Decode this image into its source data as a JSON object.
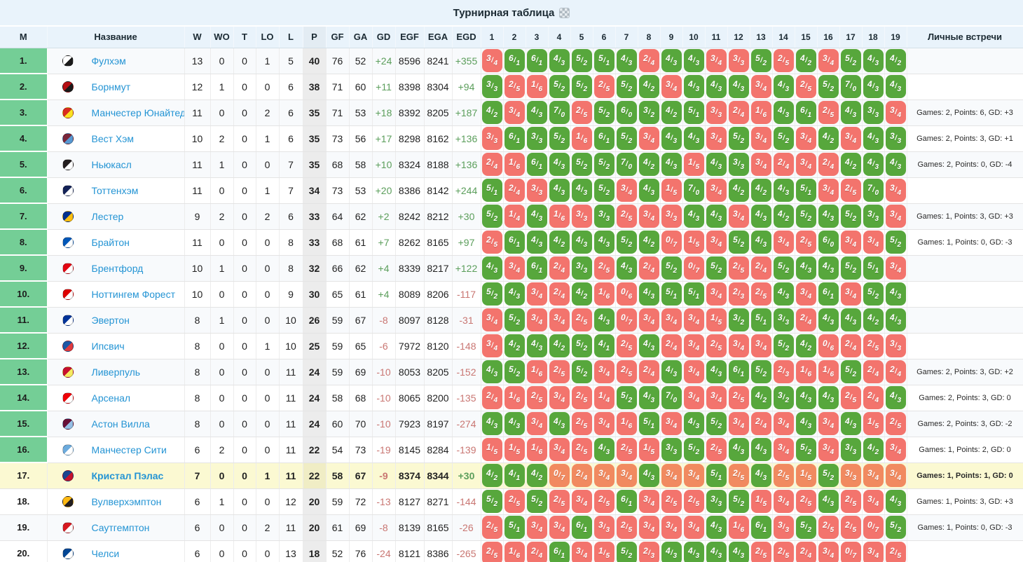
{
  "title": {
    "text": "Турнирная таблица",
    "icon": "grid-icon"
  },
  "colors": {
    "header_bg": "#e9f3fb",
    "win_chip": "#57a73c",
    "loss_chip": "#f3746d",
    "highlight_loss_chip": "#f18a60",
    "rank_green": "#74ce96",
    "highlight_row": "#fbf9d2",
    "team_link": "#2494d4",
    "positive_text": "#5b9e5b",
    "negative_text": "#c97672",
    "points_col_bg": "#ececec"
  },
  "table": {
    "stat_columns": [
      "М",
      "Название",
      "W",
      "WO",
      "T",
      "LO",
      "L",
      "P",
      "GF",
      "GA",
      "GD",
      "EGF",
      "EGA",
      "EGD"
    ],
    "matrix_columns": [
      "1",
      "2",
      "3",
      "4",
      "5",
      "6",
      "7",
      "8",
      "9",
      "10",
      "11",
      "12",
      "13",
      "14",
      "15",
      "16",
      "17",
      "18",
      "19"
    ],
    "h2h_column": "Личные встречи"
  },
  "teams": [
    {
      "pos": "1.",
      "name": "Фулхэм",
      "logo": [
        "#ffffff",
        "#1a1a1a"
      ],
      "stats": [
        13,
        0,
        0,
        1,
        5,
        40,
        76,
        52,
        "+24",
        "8596",
        "8241",
        "+355"
      ],
      "h2h": "",
      "highlight": false,
      "results": [
        "3/4l",
        "6/1w",
        "6/1w",
        "4/3w",
        "5/2w",
        "5/1w",
        "4/3w",
        "2/4l",
        "4/3w",
        "4/3w",
        "3/4l",
        "3/3l",
        "5/2w",
        "2/5l",
        "4/2w",
        "3/4l",
        "5/2w",
        "4/3w",
        "4/2w"
      ]
    },
    {
      "pos": "2.",
      "name": "Борнмут",
      "logo": [
        "#b50e12",
        "#1a1a1a"
      ],
      "stats": [
        12,
        1,
        0,
        0,
        6,
        38,
        71,
        60,
        "+11",
        "8398",
        "8304",
        "+94"
      ],
      "h2h": "",
      "highlight": false,
      "results": [
        "3/3w",
        "2/5l",
        "1/6l",
        "5/2w",
        "5/2w",
        "2/5l",
        "5/2w",
        "4/2w",
        "3/4l",
        "4/3w",
        "4/3w",
        "4/3w",
        "3/4l",
        "4/3w",
        "2/5l",
        "5/2w",
        "7/0w",
        "4/3w",
        "4/3w"
      ]
    },
    {
      "pos": "3.",
      "name": "Манчестер Юнайтед",
      "logo": [
        "#da2b1f",
        "#fbe122"
      ],
      "stats": [
        11,
        0,
        0,
        2,
        6,
        35,
        71,
        53,
        "+18",
        "8392",
        "8205",
        "+187"
      ],
      "h2h": "Games: 2, Points: 6, GD: +3",
      "highlight": false,
      "results": [
        "4/2w",
        "3/4l",
        "4/3w",
        "7/0w",
        "2/5l",
        "5/2w",
        "6/0w",
        "3/2w",
        "4/2w",
        "5/1w",
        "3/3l",
        "2/4l",
        "1/6l",
        "4/3w",
        "6/1w",
        "2/5l",
        "4/3w",
        "3/3w",
        "3/4l"
      ]
    },
    {
      "pos": "4.",
      "name": "Вест Хэм",
      "logo": [
        "#7a263a",
        "#5899d2"
      ],
      "stats": [
        10,
        2,
        0,
        1,
        6,
        35,
        73,
        56,
        "+17",
        "8298",
        "8162",
        "+136"
      ],
      "h2h": "Games: 2, Points: 3, GD: +1",
      "highlight": false,
      "results": [
        "3/3l",
        "6/1w",
        "3/3w",
        "5/2w",
        "1/6l",
        "6/1w",
        "5/2w",
        "3/4l",
        "4/3w",
        "4/3w",
        "3/4l",
        "5/2w",
        "3/4l",
        "5/2w",
        "3/4l",
        "4/2w",
        "3/4l",
        "4/3w",
        "3/3w"
      ]
    },
    {
      "pos": "5.",
      "name": "Ньюкасл",
      "logo": [
        "#241f20",
        "#ffffff"
      ],
      "stats": [
        11,
        1,
        0,
        0,
        7,
        35,
        68,
        58,
        "+10",
        "8324",
        "8188",
        "+136"
      ],
      "h2h": "Games: 2, Points: 0, GD: -4",
      "highlight": false,
      "results": [
        "2/4l",
        "1/6l",
        "6/1w",
        "4/3w",
        "5/2w",
        "5/2w",
        "7/0w",
        "4/2w",
        "4/3w",
        "1/5l",
        "4/3w",
        "3/3w",
        "3/4l",
        "2/4l",
        "3/4l",
        "2/4l",
        "4/2w",
        "4/3w",
        "4/3w"
      ]
    },
    {
      "pos": "6.",
      "name": "Тоттенхэм",
      "logo": [
        "#132257",
        "#ffffff"
      ],
      "stats": [
        11,
        0,
        0,
        1,
        7,
        34,
        73,
        53,
        "+20",
        "8386",
        "8142",
        "+244"
      ],
      "h2h": "",
      "highlight": false,
      "results": [
        "5/1w",
        "2/4l",
        "3/3l",
        "4/3w",
        "4/3w",
        "5/2w",
        "3/4l",
        "4/3w",
        "1/5l",
        "7/0w",
        "3/4l",
        "4/2w",
        "4/2w",
        "4/3w",
        "5/1w",
        "3/4l",
        "2/5l",
        "7/0w",
        "3/4l"
      ]
    },
    {
      "pos": "7.",
      "name": "Лестер",
      "logo": [
        "#003090",
        "#fdbe11"
      ],
      "stats": [
        9,
        2,
        0,
        2,
        6,
        33,
        64,
        62,
        "+2",
        "8242",
        "8212",
        "+30"
      ],
      "h2h": "Games: 1, Points: 3, GD: +3",
      "highlight": false,
      "results": [
        "5/2w",
        "1/4l",
        "4/3w",
        "1/6l",
        "3/3l",
        "3/3w",
        "2/5l",
        "3/4l",
        "3/3l",
        "4/3w",
        "4/3w",
        "3/4l",
        "4/3w",
        "4/2w",
        "5/2w",
        "4/3w",
        "5/2w",
        "3/3w",
        "3/4l"
      ]
    },
    {
      "pos": "8.",
      "name": "Брайтон",
      "logo": [
        "#0057b8",
        "#ffffff"
      ],
      "stats": [
        11,
        0,
        0,
        0,
        8,
        33,
        68,
        61,
        "+7",
        "8262",
        "8165",
        "+97"
      ],
      "h2h": "Games: 1, Points: 0, GD: -3",
      "highlight": false,
      "results": [
        "2/5l",
        "6/1w",
        "4/3w",
        "4/2w",
        "4/3w",
        "4/3w",
        "5/2w",
        "4/2w",
        "0/7l",
        "1/5l",
        "3/4l",
        "5/2w",
        "4/3w",
        "3/4l",
        "2/5l",
        "6/0w",
        "3/4l",
        "3/4l",
        "5/2w"
      ]
    },
    {
      "pos": "9.",
      "name": "Брентфорд",
      "logo": [
        "#e30613",
        "#ffffff"
      ],
      "stats": [
        10,
        1,
        0,
        0,
        8,
        32,
        66,
        62,
        "+4",
        "8339",
        "8217",
        "+122"
      ],
      "h2h": "",
      "highlight": false,
      "results": [
        "4/3w",
        "3/4l",
        "6/1w",
        "2/4l",
        "3/3w",
        "2/5l",
        "4/3w",
        "2/4l",
        "5/2w",
        "0/7l",
        "5/2w",
        "2/5l",
        "2/4l",
        "5/2w",
        "4/3w",
        "4/3w",
        "5/2w",
        "5/1w",
        "3/4l"
      ]
    },
    {
      "pos": "10.",
      "name": "Ноттингем Форест",
      "logo": [
        "#dd0000",
        "#ffffff"
      ],
      "stats": [
        10,
        0,
        0,
        0,
        9,
        30,
        65,
        61,
        "+4",
        "8089",
        "8206",
        "-117"
      ],
      "h2h": "",
      "highlight": false,
      "results": [
        "5/2w",
        "4/3w",
        "3/4l",
        "2/4l",
        "4/2w",
        "1/6l",
        "0/6l",
        "4/3w",
        "5/1w",
        "5/1w",
        "3/4l",
        "2/3l",
        "2/5l",
        "4/3w",
        "3/4l",
        "6/1w",
        "3/4l",
        "5/2w",
        "4/3w"
      ]
    },
    {
      "pos": "11.",
      "name": "Эвертон",
      "logo": [
        "#003399",
        "#ffffff"
      ],
      "stats": [
        8,
        1,
        0,
        0,
        10,
        26,
        59,
        67,
        "-8",
        "8097",
        "8128",
        "-31"
      ],
      "h2h": "",
      "highlight": false,
      "results": [
        "3/4l",
        "5/2w",
        "3/4l",
        "3/4l",
        "2/5l",
        "4/3w",
        "0/7l",
        "3/4l",
        "3/4l",
        "3/4l",
        "1/5l",
        "3/2w",
        "5/1w",
        "3/3w",
        "2/4l",
        "4/3w",
        "4/3w",
        "4/2w",
        "4/3w"
      ]
    },
    {
      "pos": "12.",
      "name": "Ипсвич",
      "logo": [
        "#1d57a5",
        "#e03a3e"
      ],
      "stats": [
        8,
        0,
        0,
        1,
        10,
        25,
        59,
        65,
        "-6",
        "7972",
        "8120",
        "-148"
      ],
      "h2h": "",
      "highlight": false,
      "results": [
        "3/4l",
        "4/2w",
        "4/3w",
        "4/2w",
        "5/2w",
        "4/1w",
        "2/5l",
        "4/3w",
        "2/4l",
        "3/4l",
        "2/5l",
        "3/4l",
        "3/4l",
        "5/2w",
        "4/2w",
        "0/6l",
        "2/4l",
        "2/5l",
        "3/3l"
      ]
    },
    {
      "pos": "13.",
      "name": "Ливерпуль",
      "logo": [
        "#c8102e",
        "#f6eb61"
      ],
      "stats": [
        8,
        0,
        0,
        0,
        11,
        24,
        59,
        69,
        "-10",
        "8053",
        "8205",
        "-152"
      ],
      "h2h": "Games: 2, Points: 3, GD: +2",
      "highlight": false,
      "results": [
        "4/3w",
        "5/2w",
        "1/6l",
        "2/5l",
        "5/2w",
        "3/4l",
        "2/5l",
        "2/4l",
        "4/3w",
        "3/4l",
        "4/3w",
        "6/1w",
        "5/2w",
        "2/3l",
        "1/6l",
        "1/6l",
        "5/2w",
        "2/4l",
        "2/4l"
      ]
    },
    {
      "pos": "14.",
      "name": "Арсенал",
      "logo": [
        "#ef0107",
        "#ffffff"
      ],
      "stats": [
        8,
        0,
        0,
        0,
        11,
        24,
        58,
        68,
        "-10",
        "8065",
        "8200",
        "-135"
      ],
      "h2h": "Games: 2, Points: 3, GD: 0",
      "highlight": false,
      "results": [
        "2/4l",
        "1/6l",
        "2/5l",
        "3/4l",
        "2/5l",
        "1/4l",
        "5/2w",
        "4/3w",
        "7/0w",
        "3/4l",
        "3/4l",
        "2/5l",
        "4/2w",
        "3/2w",
        "4/3w",
        "4/3w",
        "2/5l",
        "2/4l",
        "4/3w"
      ]
    },
    {
      "pos": "15.",
      "name": "Астон Вилла",
      "logo": [
        "#670e36",
        "#95bfe5"
      ],
      "stats": [
        8,
        0,
        0,
        0,
        11,
        24,
        60,
        70,
        "-10",
        "7923",
        "8197",
        "-274"
      ],
      "h2h": "Games: 2, Points: 3, GD: -2",
      "highlight": false,
      "results": [
        "4/3w",
        "4/3w",
        "3/4l",
        "4/3w",
        "2/5l",
        "3/4l",
        "1/6l",
        "5/1w",
        "3/4l",
        "4/3w",
        "5/2w",
        "3/4l",
        "2/4l",
        "3/4l",
        "4/3w",
        "3/4l",
        "4/3w",
        "1/5l",
        "2/5l"
      ]
    },
    {
      "pos": "16.",
      "name": "Манчестер Сити",
      "logo": [
        "#6cabdd",
        "#ffffff"
      ],
      "stats": [
        6,
        2,
        0,
        0,
        11,
        22,
        54,
        73,
        "-19",
        "8145",
        "8284",
        "-139"
      ],
      "h2h": "Games: 1, Points: 2, GD: 0",
      "highlight": false,
      "results": [
        "1/5l",
        "1/5l",
        "1/6l",
        "3/4l",
        "2/5l",
        "4/3w",
        "2/5l",
        "1/5l",
        "3/3w",
        "5/2w",
        "2/5l",
        "4/3w",
        "4/3w",
        "3/4l",
        "5/2w",
        "3/4l",
        "3/3w",
        "4/2w",
        "3/4l"
      ]
    },
    {
      "pos": "17.",
      "name": "Кристал Пэлас",
      "logo": [
        "#1b458f",
        "#c4122e"
      ],
      "stats": [
        7,
        0,
        0,
        1,
        11,
        22,
        58,
        67,
        "-9",
        "8374",
        "8344",
        "+30"
      ],
      "h2h": "Games: 1, Points: 1, GD: 0",
      "highlight": true,
      "results": [
        "4/2w",
        "4/1w",
        "4/2w",
        "0/7l",
        "2/4l",
        "3/4l",
        "3/4l",
        "4/3w",
        "3/4l",
        "3/4l",
        "5/1w",
        "2/5l",
        "4/3w",
        "2/5l",
        "1/5l",
        "5/2w",
        "3/3l",
        "3/4l",
        "3/4l"
      ]
    },
    {
      "pos": "18.",
      "name": "Вулверхэмптон",
      "logo": [
        "#fdb913",
        "#231f20"
      ],
      "stats": [
        6,
        1,
        0,
        0,
        12,
        20,
        59,
        72,
        "-13",
        "8127",
        "8271",
        "-144"
      ],
      "h2h": "Games: 1, Points: 3, GD: +3",
      "highlight": false,
      "results": [
        "5/2w",
        "2/5l",
        "5/2w",
        "2/5l",
        "3/4l",
        "2/5l",
        "6/1w",
        "3/4l",
        "2/5l",
        "2/5l",
        "3/3w",
        "5/2w",
        "1/5l",
        "3/4l",
        "2/5l",
        "4/3w",
        "2/5l",
        "3/4l",
        "4/3w"
      ]
    },
    {
      "pos": "19.",
      "name": "Саутгемптон",
      "logo": [
        "#d71920",
        "#ffffff"
      ],
      "stats": [
        6,
        0,
        0,
        2,
        11,
        20,
        61,
        69,
        "-8",
        "8139",
        "8165",
        "-26"
      ],
      "h2h": "Games: 1, Points: 0, GD: -3",
      "highlight": false,
      "results": [
        "2/5l",
        "5/1w",
        "3/4l",
        "3/4l",
        "6/1w",
        "3/3l",
        "2/5l",
        "3/4l",
        "3/4l",
        "3/4l",
        "4/3w",
        "1/6l",
        "6/1w",
        "3/3l",
        "5/2w",
        "2/5l",
        "2/5l",
        "0/7l",
        "5/2w"
      ]
    },
    {
      "pos": "20.",
      "name": "Челси",
      "logo": [
        "#034694",
        "#ffffff"
      ],
      "stats": [
        6,
        0,
        0,
        0,
        13,
        18,
        52,
        76,
        "-24",
        "8121",
        "8386",
        "-265"
      ],
      "h2h": "",
      "highlight": false,
      "results": [
        "2/5l",
        "1/6l",
        "2/4l",
        "6/1w",
        "3/4l",
        "1/5l",
        "5/2w",
        "2/3l",
        "4/3w",
        "4/3w",
        "4/3w",
        "4/3w",
        "2/5l",
        "2/5l",
        "2/4l",
        "3/4l",
        "0/7l",
        "3/4l",
        "2/5l"
      ]
    }
  ]
}
